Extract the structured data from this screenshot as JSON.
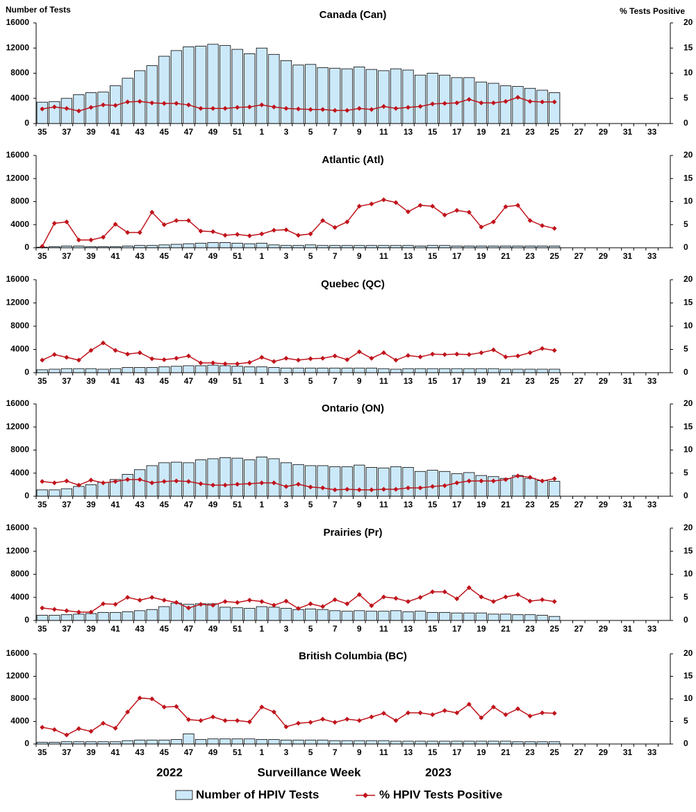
{
  "chart_data": [
    {
      "type": "bar_line",
      "title": "Canada (Can)",
      "y_label": "Number of Tests",
      "y2_label": "% Tests Positive",
      "categories": [
        "35",
        null,
        "37",
        null,
        "39",
        null,
        "41",
        null,
        "43",
        null,
        "45",
        null,
        "47",
        null,
        "49",
        null,
        "51",
        null,
        "1",
        null,
        "3",
        null,
        "5",
        null,
        "7",
        null,
        "9",
        null,
        "11",
        null,
        "13",
        null,
        "15",
        null,
        "17",
        null,
        "19",
        null,
        "21",
        null,
        "23",
        null,
        "25",
        null,
        "27",
        null,
        "29",
        null,
        "31",
        null,
        "33",
        null
      ],
      "ylim": [
        0,
        16000
      ],
      "yticks": [
        0,
        4000,
        8000,
        12000,
        16000
      ],
      "y2lim": [
        0,
        20
      ],
      "y2ticks": [
        0,
        5,
        10,
        15,
        20
      ],
      "series": [
        {
          "name": "Number of HPIV Tests",
          "color": "#cce9f9",
          "values": [
            3400,
            3500,
            4000,
            4600,
            4900,
            5000,
            6000,
            7200,
            8400,
            9200,
            10700,
            11600,
            12200,
            12300,
            12600,
            12400,
            11800,
            11100,
            12000,
            11000,
            10000,
            9300,
            9400,
            8900,
            8800,
            8700,
            9000,
            8600,
            8400,
            8700,
            8500,
            7700,
            8000,
            7700,
            7300,
            7300,
            6600,
            6400,
            6000,
            5900,
            5600,
            5300,
            4900,
            null,
            null,
            null,
            null,
            null,
            null,
            null,
            null,
            null
          ]
        },
        {
          "name": "% HPIV Tests Positive",
          "color": "#c0141c",
          "axis": "y2",
          "values": [
            2.9,
            3.3,
            3.0,
            2.5,
            3.2,
            3.7,
            3.6,
            4.3,
            4.4,
            4.1,
            4.0,
            4.0,
            3.7,
            3.0,
            3.0,
            3.0,
            3.2,
            3.3,
            3.7,
            3.3,
            3.0,
            2.9,
            2.8,
            2.8,
            2.6,
            2.6,
            3.0,
            2.8,
            3.4,
            3.0,
            3.2,
            3.4,
            3.9,
            4.0,
            4.1,
            4.8,
            4.1,
            4.1,
            4.4,
            5.2,
            4.4,
            4.3,
            4.3,
            null,
            null,
            null,
            null,
            null,
            null,
            null,
            null,
            null
          ]
        }
      ]
    },
    {
      "type": "bar_line",
      "title": "Atlantic (Atl)",
      "categories": [
        "35",
        null,
        "37",
        null,
        "39",
        null,
        "41",
        null,
        "43",
        null,
        "45",
        null,
        "47",
        null,
        "49",
        null,
        "51",
        null,
        "1",
        null,
        "3",
        null,
        "5",
        null,
        "7",
        null,
        "9",
        null,
        "11",
        null,
        "13",
        null,
        "15",
        null,
        "17",
        null,
        "19",
        null,
        "21",
        null,
        "23",
        null,
        "25",
        null,
        "27",
        null,
        "29",
        null,
        "31",
        null,
        "33",
        null
      ],
      "ylim": [
        0,
        16000
      ],
      "yticks": [
        0,
        4000,
        8000,
        12000,
        16000
      ],
      "y2lim": [
        0,
        20
      ],
      "y2ticks": [
        0,
        5,
        10,
        15,
        20
      ],
      "series": [
        {
          "name": "Number of HPIV Tests",
          "color": "#cce9f9",
          "values": [
            100,
            200,
            300,
            300,
            200,
            200,
            200,
            300,
            400,
            400,
            500,
            600,
            700,
            800,
            900,
            900,
            800,
            700,
            800,
            500,
            400,
            400,
            500,
            400,
            400,
            400,
            400,
            400,
            400,
            400,
            400,
            300,
            400,
            400,
            300,
            300,
            300,
            300,
            300,
            300,
            300,
            300,
            300,
            null,
            null,
            null,
            null,
            null,
            null,
            null,
            null,
            null
          ]
        },
        {
          "name": "% HPIV Tests Positive",
          "color": "#c0141c",
          "axis": "y2",
          "values": [
            0.3,
            5.3,
            5.6,
            1.7,
            1.7,
            2.3,
            5.1,
            3.3,
            3.3,
            7.7,
            5.0,
            5.9,
            5.9,
            3.6,
            3.5,
            2.7,
            2.9,
            2.6,
            3.0,
            3.8,
            3.9,
            2.7,
            3.0,
            5.9,
            4.4,
            5.6,
            9.0,
            9.5,
            10.4,
            9.8,
            7.8,
            9.2,
            9.0,
            7.1,
            8.1,
            7.7,
            4.5,
            5.6,
            8.9,
            9.2,
            5.9,
            4.8,
            4.2,
            null,
            null,
            null,
            null,
            null,
            null,
            null,
            null,
            null
          ]
        }
      ]
    },
    {
      "type": "bar_line",
      "title": "Quebec (QC)",
      "categories": [
        "35",
        null,
        "37",
        null,
        "39",
        null,
        "41",
        null,
        "43",
        null,
        "45",
        null,
        "47",
        null,
        "49",
        null,
        "51",
        null,
        "1",
        null,
        "3",
        null,
        "5",
        null,
        "7",
        null,
        "9",
        null,
        "11",
        null,
        "13",
        null,
        "15",
        null,
        "17",
        null,
        "19",
        null,
        "21",
        null,
        "23",
        null,
        "25",
        null,
        "27",
        null,
        "29",
        null,
        "31",
        null,
        "33",
        null
      ],
      "ylim": [
        0,
        16000
      ],
      "yticks": [
        0,
        4000,
        8000,
        12000,
        16000
      ],
      "y2lim": [
        0,
        20
      ],
      "y2ticks": [
        0,
        5,
        10,
        15,
        20
      ],
      "series": [
        {
          "name": "Number of HPIV Tests",
          "color": "#cce9f9",
          "values": [
            500,
            600,
            700,
            700,
            700,
            600,
            700,
            900,
            900,
            900,
            1000,
            1100,
            1200,
            1200,
            1300,
            1200,
            1100,
            1000,
            1000,
            900,
            800,
            800,
            800,
            800,
            800,
            800,
            800,
            800,
            700,
            600,
            700,
            700,
            700,
            700,
            700,
            700,
            700,
            700,
            600,
            600,
            600,
            600,
            600,
            null,
            null,
            null,
            null,
            null,
            null,
            null,
            null,
            null
          ]
        },
        {
          "name": "% HPIV Tests Positive",
          "color": "#c0141c",
          "axis": "y2",
          "values": [
            2.7,
            3.9,
            3.3,
            2.7,
            4.8,
            6.4,
            4.8,
            4.0,
            4.3,
            3.0,
            2.8,
            3.1,
            3.6,
            2.1,
            2.1,
            1.9,
            1.9,
            2.2,
            3.3,
            2.4,
            3.1,
            2.7,
            3.0,
            3.1,
            3.6,
            2.8,
            4.5,
            3.1,
            4.3,
            2.7,
            3.7,
            3.4,
            4.0,
            3.9,
            4.0,
            3.9,
            4.3,
            4.9,
            3.4,
            3.6,
            4.3,
            5.2,
            4.8,
            null,
            null,
            null,
            null,
            null,
            null,
            null,
            null,
            null
          ]
        }
      ]
    },
    {
      "type": "bar_line",
      "title": "Ontario (ON)",
      "categories": [
        "35",
        null,
        "37",
        null,
        "39",
        null,
        "41",
        null,
        "43",
        null,
        "45",
        null,
        "47",
        null,
        "49",
        null,
        "51",
        null,
        "1",
        null,
        "3",
        null,
        "5",
        null,
        "7",
        null,
        "9",
        null,
        "11",
        null,
        "13",
        null,
        "15",
        null,
        "17",
        null,
        "19",
        null,
        "21",
        null,
        "23",
        null,
        "25",
        null,
        "27",
        null,
        "29",
        null,
        "31",
        null,
        "33",
        null
      ],
      "ylim": [
        0,
        16000
      ],
      "yticks": [
        0,
        4000,
        8000,
        12000,
        16000
      ],
      "y2lim": [
        0,
        20
      ],
      "y2ticks": [
        0,
        5,
        10,
        15,
        20
      ],
      "series": [
        {
          "name": "Number of HPIV Tests",
          "color": "#cce9f9",
          "values": [
            1100,
            1100,
            1300,
            1700,
            2000,
            2400,
            2900,
            3800,
            4600,
            5300,
            5800,
            5900,
            5800,
            6300,
            6500,
            6700,
            6600,
            6300,
            6800,
            6500,
            5800,
            5500,
            5300,
            5300,
            5100,
            5100,
            5400,
            5000,
            4900,
            5100,
            5000,
            4300,
            4500,
            4300,
            3900,
            4100,
            3600,
            3400,
            3100,
            3600,
            3100,
            2700,
            2600,
            null,
            null,
            null,
            null,
            null,
            null,
            null,
            null,
            null
          ]
        },
        {
          "name": "% HPIV Tests Positive",
          "color": "#c0141c",
          "axis": "y2",
          "values": [
            3.2,
            2.9,
            3.3,
            2.4,
            3.5,
            2.9,
            3.2,
            3.6,
            3.6,
            2.9,
            3.2,
            3.3,
            3.2,
            2.7,
            2.4,
            2.4,
            2.6,
            2.7,
            2.9,
            2.9,
            2.1,
            2.6,
            2.0,
            1.8,
            1.4,
            1.5,
            1.4,
            1.4,
            1.5,
            1.5,
            1.8,
            1.8,
            2.1,
            2.3,
            2.9,
            3.3,
            3.3,
            3.3,
            3.6,
            4.4,
            4.1,
            3.3,
            3.8,
            null,
            null,
            null,
            null,
            null,
            null,
            null,
            null,
            null
          ]
        }
      ]
    },
    {
      "type": "bar_line",
      "title": "Prairies (Pr)",
      "categories": [
        "35",
        null,
        "37",
        null,
        "39",
        null,
        "41",
        null,
        "43",
        null,
        "45",
        null,
        "47",
        null,
        "49",
        null,
        "51",
        null,
        "1",
        null,
        "3",
        null,
        "5",
        null,
        "7",
        null,
        "9",
        null,
        "11",
        null,
        "13",
        null,
        "15",
        null,
        "17",
        null,
        "19",
        null,
        "21",
        null,
        "23",
        null,
        "25",
        null,
        "27",
        null,
        "29",
        null,
        "31",
        null,
        "33",
        null
      ],
      "ylim": [
        0,
        16000
      ],
      "yticks": [
        0,
        4000,
        8000,
        12000,
        16000
      ],
      "y2lim": [
        0,
        20
      ],
      "y2ticks": [
        0,
        5,
        10,
        15,
        20
      ],
      "series": [
        {
          "name": "Number of HPIV Tests",
          "color": "#cce9f9",
          "values": [
            900,
            900,
            1000,
            1100,
            1200,
            1400,
            1400,
            1500,
            1700,
            1900,
            2400,
            3000,
            2800,
            2900,
            2900,
            2300,
            2200,
            2100,
            2400,
            2300,
            2100,
            1900,
            2000,
            1900,
            1700,
            1600,
            1700,
            1600,
            1600,
            1700,
            1500,
            1600,
            1400,
            1400,
            1300,
            1300,
            1300,
            1100,
            1100,
            1000,
            1000,
            900,
            700,
            null,
            null,
            null,
            null,
            null,
            null,
            null,
            null,
            null
          ]
        },
        {
          "name": "% HPIV Tests Positive",
          "color": "#c0141c",
          "axis": "y2",
          "values": [
            2.7,
            2.4,
            2.1,
            1.8,
            1.8,
            3.6,
            3.5,
            5.0,
            4.4,
            5.0,
            4.4,
            3.9,
            2.7,
            3.5,
            3.3,
            4.1,
            3.9,
            4.4,
            4.1,
            3.3,
            4.2,
            2.6,
            3.6,
            3.0,
            4.5,
            3.6,
            5.6,
            3.2,
            5.1,
            4.8,
            4.1,
            5.0,
            6.2,
            6.2,
            4.7,
            7.1,
            5.1,
            4.1,
            5.1,
            5.6,
            4.2,
            4.5,
            4.1,
            null,
            null,
            null,
            null,
            null,
            null,
            null,
            null,
            null
          ]
        }
      ]
    },
    {
      "type": "bar_line",
      "title": "British Columbia (BC)",
      "x_label": "Surveillance Week",
      "annotations": [
        "2022",
        "2023"
      ],
      "legend": "bottom",
      "categories": [
        "35",
        null,
        "37",
        null,
        "39",
        null,
        "41",
        null,
        "43",
        null,
        "45",
        null,
        "47",
        null,
        "49",
        null,
        "51",
        null,
        "1",
        null,
        "3",
        null,
        "5",
        null,
        "7",
        null,
        "9",
        null,
        "11",
        null,
        "13",
        null,
        "15",
        null,
        "17",
        null,
        "19",
        null,
        "21",
        null,
        "23",
        null,
        "25",
        null,
        "27",
        null,
        "29",
        null,
        "31",
        null,
        "33",
        null
      ],
      "ylim": [
        0,
        16000
      ],
      "yticks": [
        0,
        4000,
        8000,
        12000,
        16000
      ],
      "y2lim": [
        0,
        20
      ],
      "y2ticks": [
        0,
        5,
        10,
        15,
        20
      ],
      "series": [
        {
          "name": "Number of HPIV Tests",
          "color": "#cce9f9",
          "values": [
            300,
            300,
            400,
            400,
            400,
            400,
            400,
            600,
            700,
            700,
            700,
            800,
            1800,
            800,
            900,
            900,
            900,
            900,
            800,
            800,
            700,
            700,
            700,
            700,
            600,
            600,
            600,
            600,
            600,
            500,
            500,
            500,
            500,
            500,
            500,
            500,
            500,
            500,
            500,
            400,
            400,
            400,
            400,
            null,
            null,
            null,
            null,
            null,
            null,
            null,
            null,
            null
          ]
        },
        {
          "name": "% HPIV Tests Positive",
          "color": "#c0141c",
          "axis": "y2",
          "values": [
            3.7,
            3.2,
            2.0,
            3.4,
            2.8,
            4.6,
            3.5,
            7.1,
            10.2,
            10.0,
            8.2,
            8.3,
            5.4,
            5.2,
            6.0,
            5.2,
            5.2,
            4.9,
            8.2,
            7.1,
            3.8,
            4.6,
            4.8,
            5.5,
            4.8,
            5.5,
            5.2,
            6.0,
            6.8,
            5.2,
            6.9,
            6.9,
            6.5,
            7.4,
            6.9,
            8.8,
            5.8,
            8.2,
            6.5,
            7.8,
            6.2,
            6.9,
            6.8,
            null,
            null,
            null,
            null,
            null,
            null,
            null,
            null,
            null
          ]
        }
      ]
    }
  ]
}
